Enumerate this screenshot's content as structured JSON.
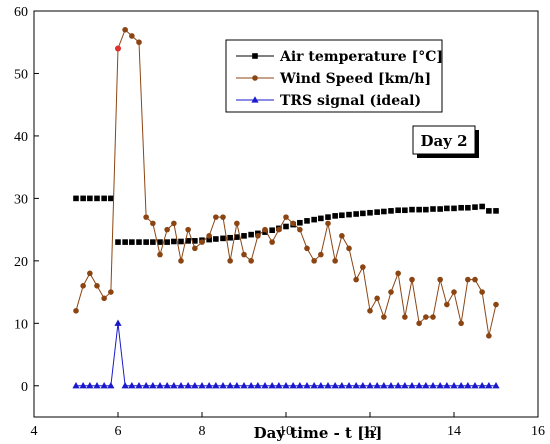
{
  "chart_data": {
    "type": "line",
    "title": "",
    "xlabel": "Day time - t [h]",
    "ylabel": "",
    "xlim": [
      4,
      16
    ],
    "ylim": [
      -5,
      60
    ],
    "xticks": [
      4,
      6,
      8,
      10,
      12,
      14,
      16
    ],
    "yticks": [
      0,
      10,
      20,
      30,
      40,
      50,
      60
    ],
    "grid": false,
    "legend_position": "top-right",
    "annotation": "Day 2",
    "series": [
      {
        "name": "Air temperature [°C]",
        "color": "#000000",
        "marker": "square",
        "line": false,
        "x": [
          5.0,
          5.17,
          5.33,
          5.5,
          5.67,
          5.83,
          6.0,
          6.17,
          6.33,
          6.5,
          6.67,
          6.83,
          7.0,
          7.17,
          7.33,
          7.5,
          7.67,
          7.83,
          8.0,
          8.17,
          8.33,
          8.5,
          8.67,
          8.83,
          9.0,
          9.17,
          9.33,
          9.5,
          9.67,
          9.83,
          10.0,
          10.17,
          10.33,
          10.5,
          10.67,
          10.83,
          11.0,
          11.17,
          11.33,
          11.5,
          11.67,
          11.83,
          12.0,
          12.17,
          12.33,
          12.5,
          12.67,
          12.83,
          13.0,
          13.17,
          13.33,
          13.5,
          13.67,
          13.83,
          14.0,
          14.17,
          14.33,
          14.5,
          14.67,
          14.83,
          15.0
        ],
        "y": [
          30,
          30,
          30,
          30,
          30,
          30,
          23,
          23,
          23,
          23,
          23,
          23,
          23,
          23,
          23.1,
          23.1,
          23.2,
          23.2,
          23.3,
          23.4,
          23.5,
          23.6,
          23.7,
          23.8,
          24,
          24.2,
          24.4,
          24.6,
          24.9,
          25.2,
          25.5,
          25.8,
          26.1,
          26.4,
          26.6,
          26.8,
          27,
          27.2,
          27.3,
          27.4,
          27.5,
          27.6,
          27.7,
          27.8,
          27.9,
          28,
          28.1,
          28.1,
          28.2,
          28.2,
          28.2,
          28.3,
          28.3,
          28.4,
          28.4,
          28.5,
          28.5,
          28.6,
          28.7,
          28,
          28
        ]
      },
      {
        "name": "Wind Speed [km/h]",
        "color": "#8b4513",
        "marker": "circle",
        "line": true,
        "x": [
          5.0,
          5.17,
          5.33,
          5.5,
          5.67,
          5.83,
          6.0,
          6.17,
          6.33,
          6.5,
          6.67,
          6.83,
          7.0,
          7.17,
          7.33,
          7.5,
          7.67,
          7.83,
          8.0,
          8.17,
          8.33,
          8.5,
          8.67,
          8.83,
          9.0,
          9.17,
          9.33,
          9.5,
          9.67,
          9.83,
          10.0,
          10.17,
          10.33,
          10.5,
          10.67,
          10.83,
          11.0,
          11.17,
          11.33,
          11.5,
          11.67,
          11.83,
          12.0,
          12.17,
          12.33,
          12.5,
          12.67,
          12.83,
          13.0,
          13.17,
          13.33,
          13.5,
          13.67,
          13.83,
          14.0,
          14.17,
          14.33,
          14.5,
          14.67,
          14.83,
          15.0
        ],
        "y": [
          12,
          16,
          18,
          16,
          14,
          15,
          54,
          57,
          56,
          55,
          27,
          26,
          21,
          25,
          26,
          20,
          25,
          22,
          23,
          24,
          27,
          27,
          20,
          26,
          21,
          20,
          24,
          25,
          23,
          25,
          27,
          26,
          25,
          22,
          20,
          21,
          26,
          20,
          24,
          22,
          17,
          19,
          12,
          14,
          11,
          15,
          18,
          11,
          17,
          10,
          11,
          11,
          17,
          13,
          15,
          10,
          17,
          17,
          15,
          8,
          13
        ]
      },
      {
        "name": "TRS signal (ideal)",
        "color": "#1a1acc",
        "marker": "triangle",
        "line": true,
        "x": [
          5.0,
          5.17,
          5.33,
          5.5,
          5.67,
          5.83,
          6.0,
          6.17,
          6.33,
          6.5,
          6.67,
          6.83,
          7.0,
          7.17,
          7.33,
          7.5,
          7.67,
          7.83,
          8.0,
          8.17,
          8.33,
          8.5,
          8.67,
          8.83,
          9.0,
          9.17,
          9.33,
          9.5,
          9.67,
          9.83,
          10.0,
          10.17,
          10.33,
          10.5,
          10.67,
          10.83,
          11.0,
          11.17,
          11.33,
          11.5,
          11.67,
          11.83,
          12.0,
          12.17,
          12.33,
          12.5,
          12.67,
          12.83,
          13.0,
          13.17,
          13.33,
          13.5,
          13.67,
          13.83,
          14.0,
          14.17,
          14.33,
          14.5,
          14.67,
          14.83,
          15.0
        ],
        "y": [
          0,
          0,
          0,
          0,
          0,
          0,
          10,
          0,
          0,
          0,
          0,
          0,
          0,
          0,
          0,
          0,
          0,
          0,
          0,
          0,
          0,
          0,
          0,
          0,
          0,
          0,
          0,
          0,
          0,
          0,
          0,
          0,
          0,
          0,
          0,
          0,
          0,
          0,
          0,
          0,
          0,
          0,
          0,
          0,
          0,
          0,
          0,
          0,
          0,
          0,
          0,
          0,
          0,
          0,
          0,
          0,
          0,
          0,
          0,
          0,
          0
        ]
      }
    ],
    "highlight_points": [
      {
        "x": 6.0,
        "y": 54,
        "color": "#e03030"
      }
    ]
  }
}
